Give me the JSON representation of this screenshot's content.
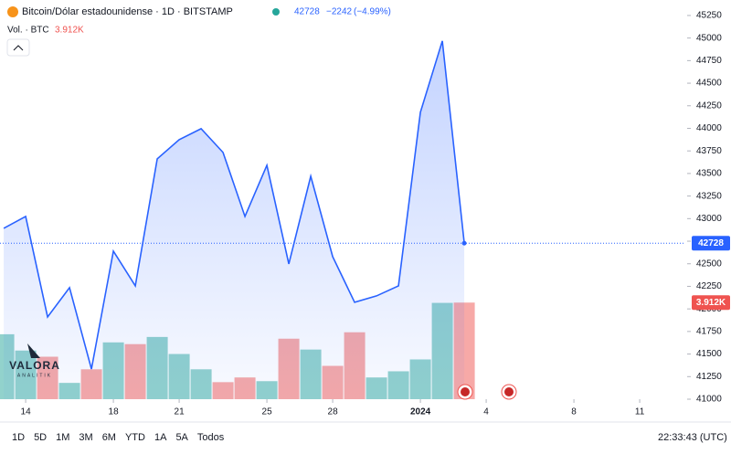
{
  "header": {
    "title": "Bitcoin/Dólar estadounidense · 1D · BITSTAMP",
    "last_price": 42728,
    "change": "−2242",
    "change_pct": "(−4.99%)",
    "volume_title": "Vol. · BTC",
    "last_volume_label": "3.912K"
  },
  "chart_data": {
    "type": "line",
    "x": [
      0,
      1,
      2,
      3,
      4,
      5,
      6,
      7,
      8,
      9,
      10,
      11,
      12,
      13,
      14,
      15,
      16,
      17,
      18,
      19,
      20,
      21
    ],
    "series": [
      {
        "name": "Bitcoin/Dólar estadounidense",
        "color": "#2962ff",
        "values": [
          42893,
          43024,
          41911,
          42235,
          41334,
          42640,
          42255,
          43662,
          43874,
          43996,
          43733,
          43024,
          43591,
          42498,
          43469,
          42579,
          42073,
          42144,
          42255,
          44178,
          44968,
          42728
        ]
      }
    ],
    "volume": {
      "values": [
        2630,
        1970,
        1720,
        660,
        1210,
        2300,
        2230,
        2520,
        1830,
        1210,
        690,
        880,
        730,
        2450,
        2010,
        1350,
        2710,
        880,
        1130,
        1610,
        3900,
        3912
      ],
      "colors": [
        "#26a69a",
        "#26a69a",
        "#ef5350",
        "#26a69a",
        "#ef5350",
        "#26a69a",
        "#ef5350",
        "#26a69a",
        "#26a69a",
        "#26a69a",
        "#ef5350",
        "#ef5350",
        "#26a69a",
        "#ef5350",
        "#26a69a",
        "#ef5350",
        "#ef5350",
        "#26a69a",
        "#26a69a",
        "#26a69a",
        "#26a69a",
        "#ef5350"
      ],
      "ylim": [
        0,
        15720
      ]
    },
    "xlim": [
      -0.17,
      31.08
    ],
    "xticks": [
      {
        "value": 1,
        "label": "14"
      },
      {
        "value": 5,
        "label": "18"
      },
      {
        "value": 8,
        "label": "21"
      },
      {
        "value": 12,
        "label": "25"
      },
      {
        "value": 15,
        "label": "28"
      },
      {
        "value": 19,
        "label": "2024"
      },
      {
        "value": 22,
        "label": "4"
      },
      {
        "value": 26,
        "label": "8"
      },
      {
        "value": 29,
        "label": "11"
      }
    ],
    "ylim": [
      41000,
      45300
    ],
    "yticks": [
      41000,
      41250,
      41500,
      41750,
      42000,
      42250,
      42500,
      42750,
      43000,
      43250,
      43500,
      43750,
      44000,
      44250,
      44500,
      44750,
      45000,
      45250
    ]
  },
  "toolbar": {
    "ranges": [
      "1D",
      "5D",
      "1M",
      "3M",
      "6M",
      "YTD",
      "1A",
      "5A",
      "Todos"
    ],
    "clock": "22:33:43 (UTC)"
  },
  "logo": {
    "name": "VALORA",
    "sub": "ANALITIK"
  }
}
